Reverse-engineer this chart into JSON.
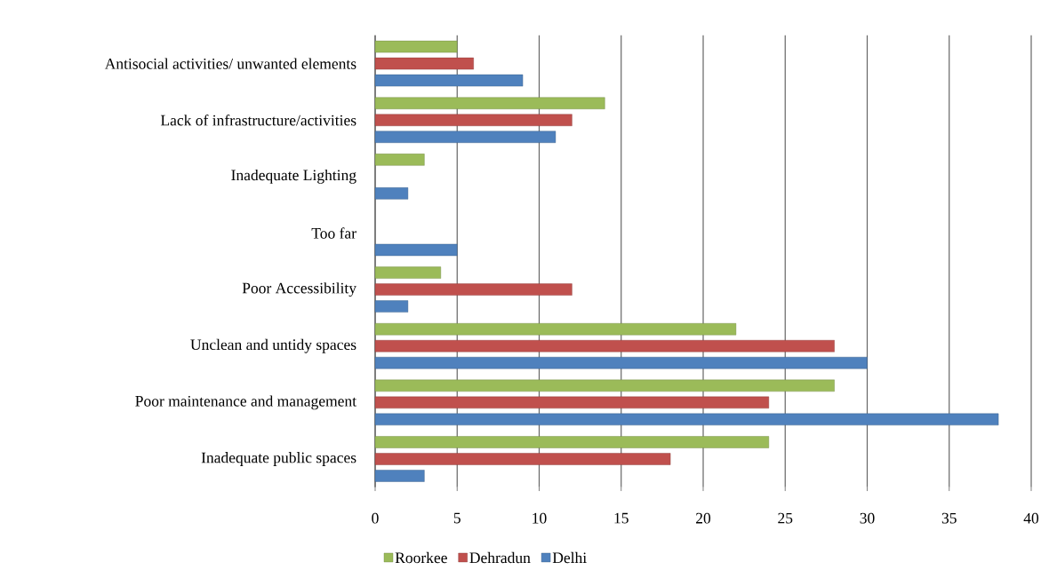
{
  "chart_data": {
    "type": "bar",
    "orientation": "horizontal",
    "categories": [
      "Antisocial activities/ unwanted elements",
      "Lack of infrastructure/activities",
      "Inadequate Lighting",
      "Too far",
      "Poor Accessibility",
      "Unclean and untidy spaces",
      "Poor maintenance and management",
      "Inadequate public spaces"
    ],
    "series": [
      {
        "name": "Delhi",
        "color": "#4f81bd",
        "values": [
          9,
          11,
          2,
          5,
          2,
          30,
          38,
          3
        ]
      },
      {
        "name": "Dehradun",
        "color": "#c0504d",
        "values": [
          6,
          12,
          null,
          null,
          12,
          28,
          24,
          18
        ]
      },
      {
        "name": "Roorkee",
        "color": "#9bbb59",
        "values": [
          5,
          14,
          3,
          null,
          4,
          22,
          28,
          24
        ]
      }
    ],
    "xlim": [
      0,
      40
    ],
    "xticks": [
      0,
      5,
      10,
      15,
      20,
      25,
      30,
      35,
      40
    ],
    "grid": "x",
    "legend": "bottom"
  }
}
